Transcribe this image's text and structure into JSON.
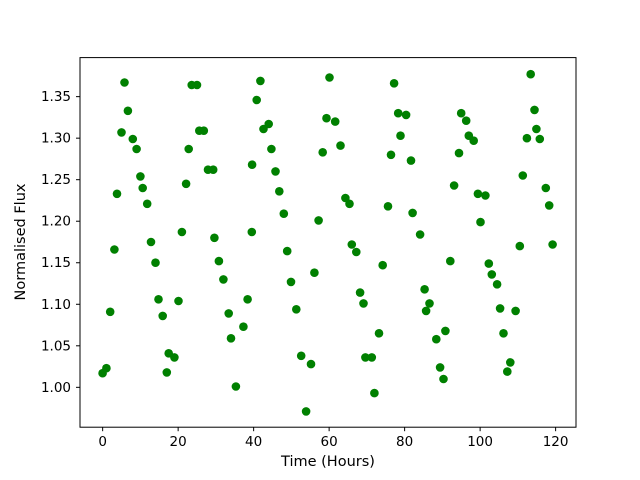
{
  "figure": {
    "background": "#ffffff",
    "axis_color": "#000000",
    "plot_bg": "#ffffff"
  },
  "chart_data": {
    "type": "scatter",
    "title": "",
    "xlabel": "Time (Hours)",
    "ylabel": "Normalised Flux",
    "xlim": [
      -6.0,
      125.4
    ],
    "ylim": [
      0.952,
      1.397
    ],
    "xticks": [
      0,
      20,
      40,
      60,
      80,
      100,
      120
    ],
    "yticks": [
      1.0,
      1.05,
      1.1,
      1.15,
      1.2,
      1.25,
      1.3,
      1.35
    ],
    "grid": false,
    "legend_position": "none",
    "marker": {
      "shape": "circle",
      "color": "#008000",
      "radius_px": 4.3
    },
    "series": [
      {
        "name": "normalised-flux-vs-time",
        "points": [
          [
            0.0,
            1.017
          ],
          [
            1.0,
            1.023
          ],
          [
            2.0,
            1.091
          ],
          [
            3.1,
            1.166
          ],
          [
            3.8,
            1.233
          ],
          [
            5.0,
            1.307
          ],
          [
            5.8,
            1.367
          ],
          [
            6.7,
            1.333
          ],
          [
            8.0,
            1.299
          ],
          [
            9.0,
            1.287
          ],
          [
            10.0,
            1.254
          ],
          [
            10.6,
            1.24
          ],
          [
            11.8,
            1.221
          ],
          [
            12.8,
            1.175
          ],
          [
            14.0,
            1.15
          ],
          [
            14.8,
            1.106
          ],
          [
            15.9,
            1.086
          ],
          [
            17.0,
            1.018
          ],
          [
            17.5,
            1.041
          ],
          [
            19.0,
            1.036
          ],
          [
            20.1,
            1.104
          ],
          [
            21.0,
            1.187
          ],
          [
            22.1,
            1.245
          ],
          [
            22.8,
            1.287
          ],
          [
            23.6,
            1.364
          ],
          [
            25.0,
            1.364
          ],
          [
            25.6,
            1.309
          ],
          [
            26.8,
            1.309
          ],
          [
            27.9,
            1.262
          ],
          [
            29.3,
            1.262
          ],
          [
            29.6,
            1.18
          ],
          [
            30.8,
            1.152
          ],
          [
            32.0,
            1.13
          ],
          [
            33.4,
            1.089
          ],
          [
            34.0,
            1.059
          ],
          [
            35.3,
            1.001
          ],
          [
            37.3,
            1.073
          ],
          [
            38.4,
            1.106
          ],
          [
            39.5,
            1.187
          ],
          [
            39.6,
            1.268
          ],
          [
            40.8,
            1.346
          ],
          [
            41.8,
            1.369
          ],
          [
            42.6,
            1.311
          ],
          [
            44.0,
            1.317
          ],
          [
            44.7,
            1.287
          ],
          [
            45.8,
            1.26
          ],
          [
            46.8,
            1.236
          ],
          [
            48.0,
            1.209
          ],
          [
            48.9,
            1.164
          ],
          [
            49.9,
            1.127
          ],
          [
            51.3,
            1.094
          ],
          [
            52.6,
            1.038
          ],
          [
            53.9,
            0.971
          ],
          [
            55.2,
            1.028
          ],
          [
            56.1,
            1.138
          ],
          [
            57.2,
            1.201
          ],
          [
            58.3,
            1.283
          ],
          [
            59.3,
            1.324
          ],
          [
            60.1,
            1.373
          ],
          [
            61.6,
            1.32
          ],
          [
            63.0,
            1.291
          ],
          [
            64.3,
            1.228
          ],
          [
            65.4,
            1.221
          ],
          [
            66.0,
            1.172
          ],
          [
            67.2,
            1.163
          ],
          [
            68.2,
            1.114
          ],
          [
            69.1,
            1.101
          ],
          [
            69.6,
            1.036
          ],
          [
            71.3,
            1.036
          ],
          [
            72.0,
            0.993
          ],
          [
            73.2,
            1.065
          ],
          [
            74.2,
            1.147
          ],
          [
            75.6,
            1.218
          ],
          [
            76.4,
            1.28
          ],
          [
            77.2,
            1.366
          ],
          [
            78.3,
            1.33
          ],
          [
            78.9,
            1.303
          ],
          [
            80.4,
            1.328
          ],
          [
            81.7,
            1.273
          ],
          [
            82.1,
            1.21
          ],
          [
            84.1,
            1.184
          ],
          [
            85.3,
            1.118
          ],
          [
            85.7,
            1.092
          ],
          [
            86.6,
            1.101
          ],
          [
            88.4,
            1.058
          ],
          [
            89.4,
            1.024
          ],
          [
            90.3,
            1.01
          ],
          [
            90.8,
            1.068
          ],
          [
            92.1,
            1.152
          ],
          [
            93.1,
            1.243
          ],
          [
            94.4,
            1.282
          ],
          [
            95.0,
            1.33
          ],
          [
            96.3,
            1.321
          ],
          [
            97.0,
            1.303
          ],
          [
            98.3,
            1.297
          ],
          [
            99.4,
            1.233
          ],
          [
            100.1,
            1.199
          ],
          [
            101.4,
            1.231
          ],
          [
            102.3,
            1.149
          ],
          [
            103.1,
            1.136
          ],
          [
            104.5,
            1.124
          ],
          [
            105.3,
            1.095
          ],
          [
            106.2,
            1.065
          ],
          [
            107.2,
            1.019
          ],
          [
            108.0,
            1.03
          ],
          [
            109.4,
            1.092
          ],
          [
            110.5,
            1.17
          ],
          [
            111.3,
            1.255
          ],
          [
            112.4,
            1.3
          ],
          [
            113.4,
            1.377
          ],
          [
            114.4,
            1.334
          ],
          [
            114.9,
            1.311
          ],
          [
            115.8,
            1.299
          ],
          [
            117.4,
            1.24
          ],
          [
            118.3,
            1.219
          ],
          [
            119.2,
            1.172
          ]
        ]
      }
    ]
  }
}
